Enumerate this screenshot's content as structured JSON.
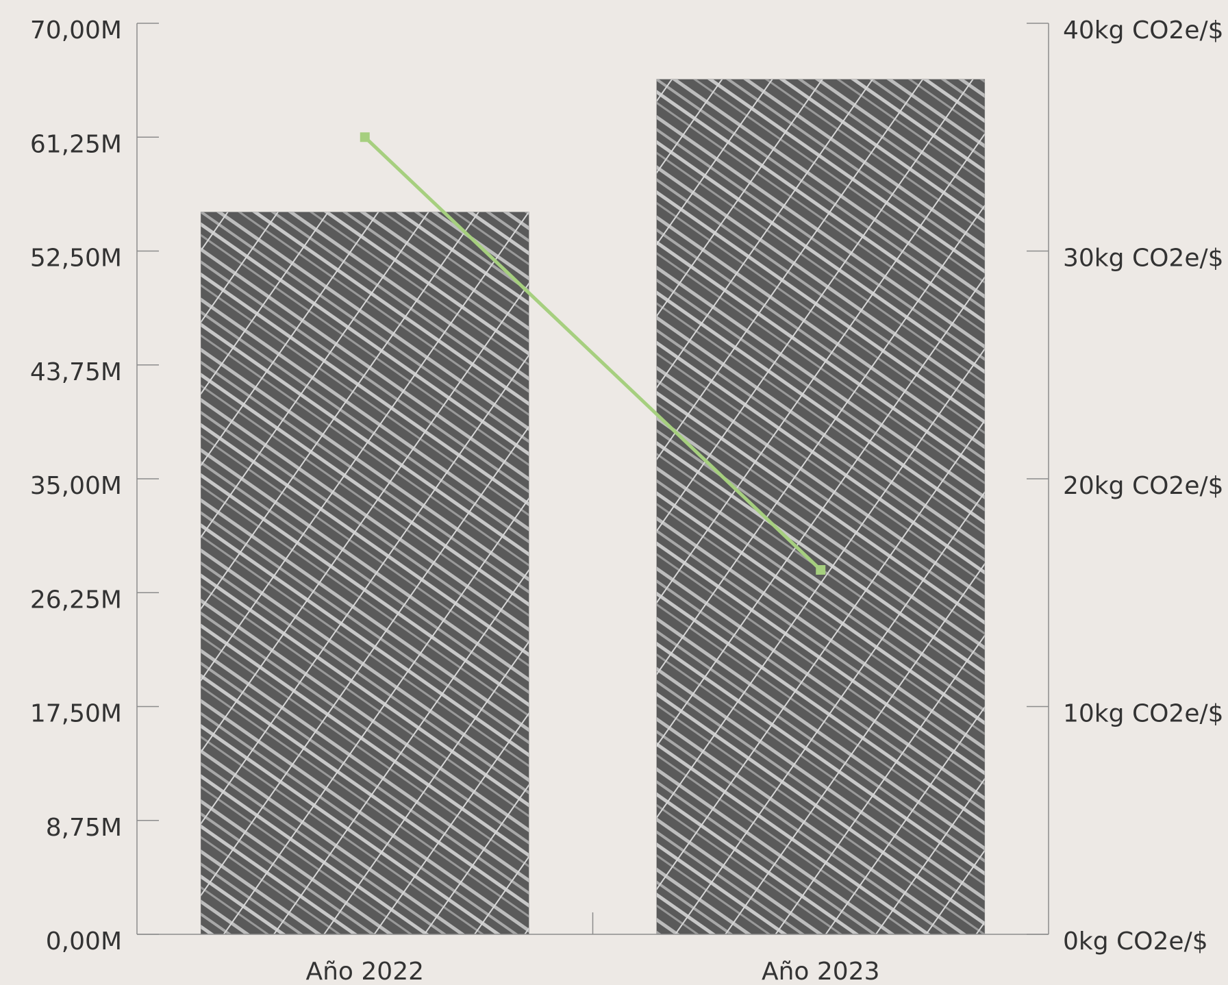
{
  "chart_data": {
    "type": "bar",
    "categories": [
      "Año 2022",
      "Año 2023"
    ],
    "series": [
      {
        "type": "bar",
        "color": "#8a8a8a",
        "values": [
          55.5,
          65.7
        ]
      },
      {
        "type": "line",
        "axis": "y2",
        "color": "#a6cf7f",
        "values": [
          35,
          16
        ]
      }
    ],
    "ylim": [
      0,
      70
    ],
    "yticks": [
      {
        "value": 0,
        "label": "0,00M"
      },
      {
        "value": 8.75,
        "label": "8,75M"
      },
      {
        "value": 17.5,
        "label": "17,50M"
      },
      {
        "value": 26.25,
        "label": "26,25M"
      },
      {
        "value": 35,
        "label": "35,00M"
      },
      {
        "value": 43.75,
        "label": "43,75M"
      },
      {
        "value": 52.5,
        "label": "52,50M"
      },
      {
        "value": 61.25,
        "label": "61,25M"
      },
      {
        "value": 70,
        "label": "70,00M"
      }
    ],
    "y2lim": [
      0,
      40
    ],
    "y2ticks": [
      {
        "value": 0,
        "label": "0kg CO2e/$"
      },
      {
        "value": 10,
        "label": "10kg CO2e/$"
      },
      {
        "value": 20,
        "label": "20kg CO2e/$"
      },
      {
        "value": 30,
        "label": "30kg CO2e/$"
      },
      {
        "value": 40,
        "label": "40kg CO2e/$"
      }
    ],
    "grid": false
  }
}
